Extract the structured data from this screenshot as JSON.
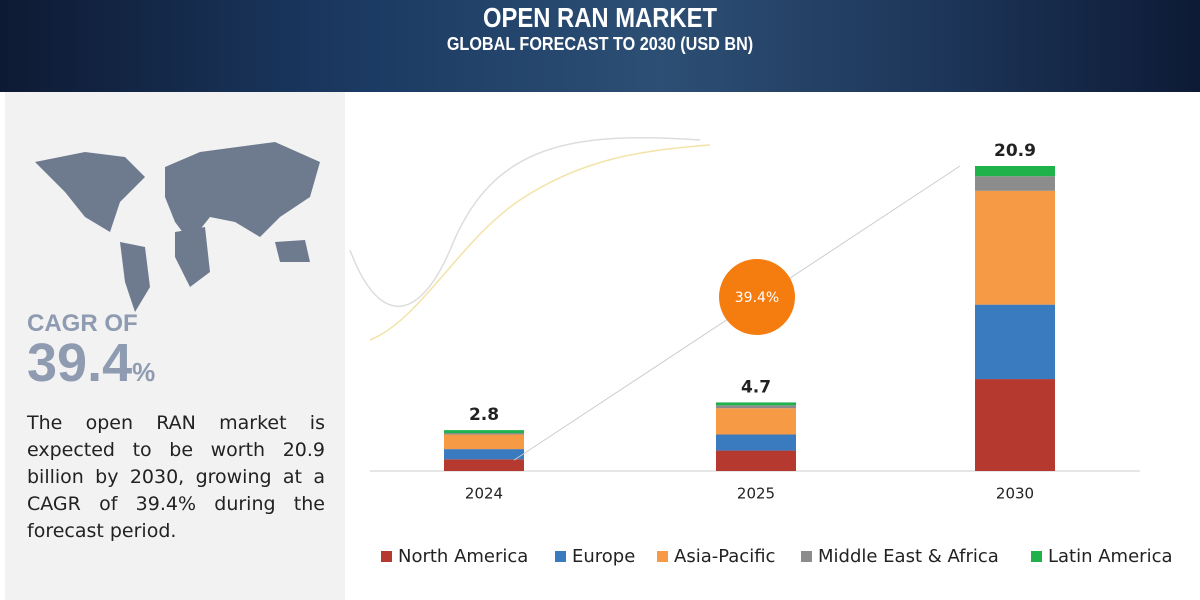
{
  "header": {
    "title": "OPEN RAN MARKET",
    "subtitle": "GLOBAL FORECAST TO 2030 (USD BN)"
  },
  "sidebar": {
    "cagr_label": "CAGR OF",
    "cagr_value": "39.4",
    "cagr_unit": "%",
    "description": "The open RAN market is expected to be worth 20.9 billion by 2030, growing at a CAGR of 39.4% during the forecast period."
  },
  "chart_data": {
    "type": "bar",
    "stacked": true,
    "categories": [
      "2024",
      "2025",
      "2030"
    ],
    "totals": [
      2.8,
      4.7,
      20.9
    ],
    "cagr_bubble": "39.4%",
    "series": [
      {
        "name": "North America",
        "color": "#b5392f",
        "values": [
          0.8,
          1.4,
          6.3
        ]
      },
      {
        "name": "Europe",
        "color": "#3a7abf",
        "values": [
          0.7,
          1.1,
          5.1
        ]
      },
      {
        "name": "Asia-Pacific",
        "color": "#f79a45",
        "values": [
          1.0,
          1.8,
          7.8
        ]
      },
      {
        "name": "Middle East & Africa",
        "color": "#8c8c8c",
        "values": [
          0.1,
          0.2,
          1.0
        ]
      },
      {
        "name": "Latin America",
        "color": "#1fb24a",
        "values": [
          0.2,
          0.2,
          0.7
        ]
      }
    ]
  }
}
